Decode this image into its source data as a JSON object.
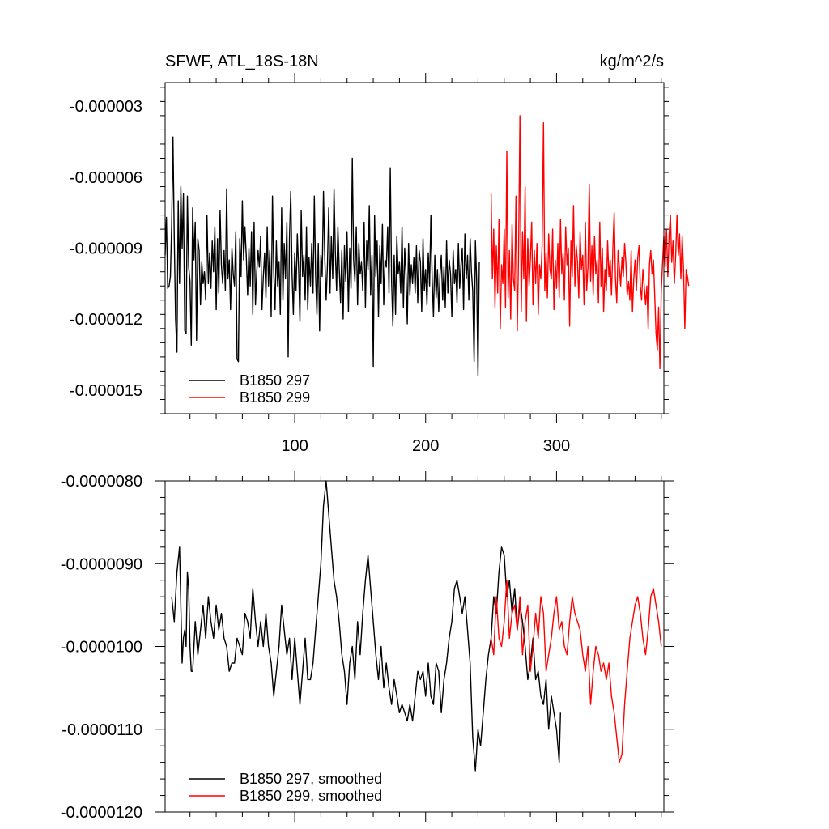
{
  "chart_data": [
    {
      "type": "line",
      "title": "SFWF, ATL_18S-18N",
      "units": "kg/m^2/s",
      "xlim": [
        1,
        382
      ],
      "ylim": [
        -1.6e-05,
        -2e-06
      ],
      "y_ticks": [
        -3e-06,
        -6e-06,
        -9e-06,
        -1.2e-05,
        -1.5e-05
      ],
      "y_tick_labels": [
        "-0.000003",
        "-0.000006",
        "-0.000009",
        "-0.000012",
        "-0.000015"
      ],
      "x_ticks": [
        100,
        200,
        300
      ],
      "x_tick_labels": [
        "100",
        "200",
        "300"
      ],
      "legend_position": "bottom-left",
      "series": [
        {
          "name": "B1850 297",
          "color": "#000000",
          "x_start": 1,
          "values": [
            -9.3e-06,
            -7.7e-06,
            -1.07e-05,
            -1.06e-05,
            -1.02e-05,
            -8e-06,
            -4.3e-06,
            -8.6e-06,
            -1.2e-05,
            -1.34e-05,
            -7e-06,
            -1.05e-05,
            -6.4e-06,
            -9e-06,
            -6.7e-06,
            -1.25e-05,
            -1.26e-05,
            -6.8e-06,
            -9.8e-06,
            -1.04e-05,
            -1.31e-05,
            -7.3e-06,
            -9.5e-06,
            -7.9e-06,
            -1.29e-05,
            -8.6e-06,
            -9.1e-06,
            -1.14e-05,
            -9.6e-06,
            -1.05e-05,
            -1e-05,
            -1.12e-05,
            -7.6e-06,
            -1.05e-05,
            -9.2e-06,
            -1.07e-05,
            -8.7e-06,
            -1e-05,
            -8.1e-06,
            -1.16e-05,
            -8.6e-06,
            -1.09e-05,
            -7.4e-06,
            -9.7e-06,
            -1.05e-05,
            -9.1e-06,
            -1.08e-05,
            -6.5e-06,
            -1.03e-05,
            -9.5e-06,
            -1.16e-05,
            -9e-06,
            -1.01e-05,
            -1.06e-05,
            -8.3e-06,
            -1.37e-05,
            -1.38e-05,
            -8.6e-06,
            -1.02e-05,
            -7e-06,
            -9.5e-06,
            -8.1e-06,
            -9.3e-06,
            -1.1e-05,
            -9e-06,
            -1.06e-05,
            -8.3e-06,
            -1.18e-05,
            -7.9e-06,
            -1.14e-05,
            -1e-05,
            -9.1e-06,
            -9.8e-06,
            -8.5e-06,
            -1.16e-05,
            -1.02e-05,
            -9.2e-06,
            -1.11e-05,
            -8.1e-06,
            -1.06e-05,
            -9.1e-06,
            -1.19e-05,
            -6.8e-06,
            -1e-05,
            -1.16e-05,
            -8.7e-06,
            -1.06e-05,
            -9.6e-06,
            -1.18e-05,
            -7.3e-06,
            -1.12e-05,
            -8.8e-06,
            -1.03e-05,
            -7.9e-06,
            -1.36e-05,
            -8.6e-06,
            -6.6e-06,
            -1.01e-05,
            -1.18e-05,
            -9.2e-06,
            -1.08e-05,
            -8.4e-06,
            -9.9e-06,
            -1.21e-05,
            -7.4e-06,
            -1.02e-05,
            -9.3e-06,
            -1.12e-05,
            -8.1e-06,
            -1.16e-05,
            -9.4e-06,
            -1.06e-05,
            -8.8e-06,
            -1.09e-05,
            -6.8e-06,
            -1.02e-05,
            -1.18e-05,
            -8.8e-06,
            -1.25e-05,
            -9.3e-06,
            -1.02e-05,
            -6.6e-06,
            -9.4e-06,
            -1.12e-05,
            -9.7e-06,
            -7.3e-06,
            -1.09e-05,
            -8.5e-06,
            -1.03e-05,
            -6.5e-06,
            -9.1e-06,
            -1.08e-05,
            -8.1e-06,
            -9.8e-06,
            -1.13e-05,
            -9.1e-06,
            -1.2e-05,
            -8.9e-06,
            -1.04e-05,
            -8.3e-06,
            -1.17e-05,
            -9e-06,
            -1.07e-05,
            -5.2e-06,
            -9.5e-06,
            -1.04e-05,
            -8.1e-06,
            -1.14e-05,
            -8.8e-06,
            -1.01e-05,
            -9.6e-06,
            -1.08e-05,
            -7.9e-06,
            -1.15e-05,
            -8.7e-06,
            -9.9e-06,
            -7.2e-06,
            -1.1e-05,
            -9.3e-06,
            -1.4e-05,
            -7.6e-06,
            -1.02e-05,
            -8.7e-06,
            -1.19e-05,
            -8.9e-06,
            -1.05e-05,
            -8e-06,
            -1.14e-05,
            -9.5e-06,
            -9.8e-06,
            -8.1e-06,
            -1.09e-05,
            -5.6e-06,
            -1.04e-05,
            -1.23e-05,
            -9.3e-06,
            -1.18e-05,
            -8.5e-06,
            -1.01e-05,
            -9.6e-06,
            -1.09e-05,
            -8.1e-06,
            -1.15e-05,
            -9e-06,
            -1.01e-05,
            -1.22e-05,
            -8.8e-06,
            -1.1e-05,
            -9.7e-06,
            -1.05e-05,
            -9.4e-06,
            -1.09e-05,
            -8.9e-06,
            -1.13e-05,
            -9.1e-06,
            -9.6e-06,
            -1.17e-05,
            -8.6e-06,
            -1.08e-05,
            -9.9e-06,
            -1.14e-05,
            -9.2e-06,
            -1.06e-05,
            -7.6e-06,
            -1.03e-05,
            -1.19e-05,
            -9.3e-06,
            -1.11e-05,
            -9.9e-06,
            -1.17e-05,
            -1.01e-05,
            -9.3e-06,
            -1.12e-05,
            -9.8e-06,
            -1.15e-05,
            -8.7e-06,
            -1.09e-05,
            -9.5e-06,
            -1.01e-05,
            -1.19e-05,
            -9.1e-06,
            -1.05e-05,
            -9.9e-06,
            -1.13e-05,
            -8.8e-06,
            -1.07e-05,
            -9.7e-06,
            -9e-06,
            -1.16e-05,
            -8.4e-06,
            -1.03e-05,
            -9.3e-06,
            -1.12e-05,
            -8.6e-06,
            -1e-05,
            -1.08e-05,
            -1.38e-05,
            -8.7e-06,
            -1.04e-05,
            -1.44e-05,
            -9.6e-06
          ],
          "legend_label": "B1850 297"
        },
        {
          "name": "B1850 299",
          "color": "#ff0000",
          "x_start": 250,
          "values": [
            -6.7e-06,
            -1.03e-05,
            -8.2e-06,
            -1.15e-05,
            -8.9e-06,
            -1.09e-05,
            -7.8e-06,
            -1.24e-05,
            -9.7e-06,
            -1.05e-05,
            -8.2e-06,
            -1.15e-05,
            -4.9e-06,
            -1.11e-05,
            -9.1e-06,
            -1.2e-05,
            -8e-06,
            -1.03e-05,
            -1.08e-05,
            -6.8e-06,
            -1.25e-05,
            -9.3e-06,
            -3.4e-06,
            -1.17e-05,
            -8.3e-06,
            -1.03e-05,
            -6.4e-06,
            -1.21e-05,
            -8.6e-06,
            -1.06e-05,
            -9.5e-06,
            -7.9e-06,
            -1.14e-05,
            -9.1e-06,
            -1.05e-05,
            -8.8e-06,
            -1.18e-05,
            -9.7e-06,
            -1.03e-05,
            -8.9e-06,
            -3.7e-06,
            -1.08e-05,
            -9.2e-06,
            -1.11e-05,
            -8.4e-06,
            -9.9e-06,
            -1.03e-05,
            -8.2e-06,
            -1.16e-05,
            -9.5e-06,
            -1.07e-05,
            -8.8e-06,
            -1.11e-05,
            -7.8e-06,
            -1.01e-05,
            -9.2e-06,
            -1.12e-05,
            -8.1e-06,
            -9.7e-06,
            -9e-06,
            -1.23e-05,
            -8.7e-06,
            -1.02e-05,
            -7.2e-06,
            -1.06e-05,
            -8.9e-06,
            -9.6e-06,
            -1.11e-05,
            -8.3e-06,
            -9.9e-06,
            -9.3e-06,
            -1.14e-05,
            -7.9e-06,
            -1.08e-05,
            -9.8e-06,
            -6.3e-06,
            -1.04e-05,
            -8.9e-06,
            -1.1e-05,
            -8.5e-06,
            -1.01e-05,
            -9.5e-06,
            -1.13e-05,
            -7.9e-06,
            -1.06e-05,
            -9e-06,
            -1.17e-05,
            -9.9e-06,
            -1.08e-05,
            -8.7e-06,
            -1.02e-05,
            -9.5e-06,
            -1.1e-05,
            -9.1e-06,
            -7.5e-06,
            -1.03e-05,
            -1.13e-05,
            -9.1e-06,
            -9.8e-06,
            -1.06e-05,
            -9.4e-06,
            -1.02e-05,
            -8.8e-06,
            -9.6e-06,
            -1.1e-05,
            -1.04e-05,
            -1.12e-05,
            -9.1e-06,
            -1.17e-05,
            -1.03e-05,
            -9.5e-06,
            -1.08e-05,
            -9.4e-06,
            -8.9e-06,
            -1.06e-05,
            -1.12e-05,
            -9.9e-06,
            -1.06e-05,
            -1.14e-05,
            -1.06e-05,
            -1.24e-05,
            -9.7e-06,
            -9.1e-06,
            -1.01e-05,
            -9.5e-06,
            -1.1e-05,
            -1.26e-05,
            -1.33e-05,
            -1.15e-05,
            -1.41e-05,
            -1.08e-05,
            -9.6e-06,
            -8.5e-06,
            -9.8e-06,
            -8.2e-06,
            -1.02e-05,
            -8.4e-06,
            -7.6e-06,
            -9.6e-06,
            -8.7e-06,
            -1.05e-05,
            -9.3e-06,
            -7.6e-06,
            -9.3e-06,
            -8.4e-06,
            -1.03e-05,
            -8.5e-06,
            -9.9e-06,
            -1.24e-05,
            -9.9e-06,
            -1.02e-05,
            -1.06e-05
          ],
          "legend_label": "B1850 299"
        }
      ]
    },
    {
      "type": "line",
      "title": "",
      "units": "",
      "xlim": [
        1,
        382
      ],
      "ylim": [
        -1.2e-05,
        -8e-06
      ],
      "y_ticks": [
        -8e-06,
        -9e-06,
        -1e-05,
        -1.1e-05,
        -1.2e-05
      ],
      "y_tick_labels": [
        "-0.0000080",
        "-0.0000090",
        "-0.0000100",
        "-0.0000110",
        "-0.0000120"
      ],
      "x_ticks": [
        100,
        200,
        300
      ],
      "x_tick_labels": [],
      "legend_position": "bottom-left",
      "series": [
        {
          "name": "B1850 297, smoothed",
          "color": "#000000",
          "x": [
            6,
            8,
            10,
            12,
            14,
            15,
            16,
            17,
            18,
            19,
            20,
            21,
            22,
            24,
            26,
            28,
            30,
            32,
            34,
            36,
            38,
            40,
            42,
            44,
            46,
            48,
            50,
            52,
            54,
            56,
            58,
            60,
            62,
            64,
            66,
            68,
            70,
            72,
            74,
            76,
            78,
            80,
            82,
            84,
            86,
            88,
            90,
            92,
            94,
            96,
            98,
            100,
            102,
            104,
            106,
            108,
            110,
            112,
            114,
            116,
            118,
            120,
            122,
            124,
            126,
            128,
            130,
            132,
            134,
            136,
            138,
            140,
            142,
            144,
            146,
            148,
            150,
            152,
            154,
            156,
            158,
            160,
            162,
            164,
            166,
            168,
            170,
            172,
            174,
            176,
            178,
            180,
            182,
            184,
            186,
            188,
            190,
            192,
            194,
            196,
            198,
            200,
            202,
            204,
            206,
            208,
            210,
            212,
            214,
            216,
            218,
            220,
            222,
            224,
            226,
            228,
            230,
            232,
            234,
            236,
            238,
            240,
            242,
            244,
            246,
            248,
            250,
            252,
            254,
            256,
            258,
            260,
            262,
            264,
            266,
            268,
            270,
            272,
            274,
            276,
            278,
            280,
            282,
            284,
            286,
            288,
            290,
            292,
            294,
            296,
            298,
            300,
            302,
            303
          ],
          "values": [
            -9.4e-06,
            -9.7e-06,
            -9.1e-06,
            -8.8e-06,
            -1.02e-05,
            -9.9e-06,
            -9.8e-06,
            -1e-05,
            -9.1e-06,
            -9.3e-06,
            -1e-05,
            -1.03e-05,
            -1.03e-05,
            -9.7e-06,
            -1.01e-05,
            -9.8e-06,
            -9.5e-06,
            -9.9e-06,
            -9.4e-06,
            -9.7e-06,
            -9.9e-06,
            -9.5e-06,
            -9.8e-06,
            -9.6e-06,
            -9.9e-06,
            -1e-05,
            -1.03e-05,
            -1.02e-05,
            -1.02e-05,
            -9.9e-06,
            -1e-05,
            -1.01e-05,
            -9.6e-06,
            -9.7e-06,
            -9.9e-06,
            -9.3e-06,
            -9.7e-06,
            -1e-05,
            -9.7e-06,
            -1e-05,
            -9.6e-06,
            -1e-05,
            -1.02e-05,
            -1.06e-05,
            -1.03e-05,
            -1e-05,
            -9.5e-06,
            -9.8e-06,
            -1.01e-05,
            -9.9e-06,
            -1.04e-05,
            -9.9e-06,
            -1.03e-05,
            -1.07e-05,
            -1.03e-05,
            -9.9e-06,
            -1.04e-05,
            -1.04e-05,
            -1.02e-05,
            -9.8e-06,
            -9.4e-06,
            -9e-06,
            -8.3e-06,
            -8e-06,
            -8.4e-06,
            -8.8e-06,
            -9.2e-06,
            -9.4e-06,
            -9.7e-06,
            -1.01e-05,
            -1.03e-05,
            -1.07e-05,
            -1.02e-05,
            -1e-05,
            -1.04e-05,
            -9.7e-06,
            -1.01e-05,
            -9.6e-06,
            -9.2e-06,
            -8.9e-06,
            -9.3e-06,
            -9.7e-06,
            -1.01e-05,
            -1.04e-05,
            -1e-05,
            -1.05e-05,
            -1.02e-05,
            -1.05e-05,
            -1.07e-05,
            -1.04e-05,
            -1.06e-05,
            -1.08e-05,
            -1.07e-05,
            -1.08e-05,
            -1.09e-05,
            -1.07e-05,
            -1.09e-05,
            -1.06e-05,
            -1.03e-05,
            -1.04e-05,
            -1.03e-05,
            -1.06e-05,
            -1.02e-05,
            -1.06e-05,
            -1.07e-05,
            -1.02e-05,
            -1.03e-05,
            -1.08e-05,
            -1.04e-05,
            -1.02e-05,
            -9.9e-06,
            -9.7e-06,
            -9.3e-06,
            -9.2e-06,
            -9.4e-06,
            -9.6e-06,
            -9.4e-06,
            -9.8e-06,
            -1.02e-05,
            -1.11e-05,
            -1.15e-05,
            -1.1e-05,
            -1.12e-05,
            -1.08e-05,
            -1.04e-05,
            -1.01e-05,
            -9.9e-06,
            -9.4e-06,
            -9.6e-06,
            -9.1e-06,
            -8.8e-06,
            -8.9e-06,
            -9.4e-06,
            -9.2e-06,
            -9.6e-06,
            -9.3e-06,
            -9.8e-06,
            -9.5e-06,
            -9.7e-06,
            -1e-05,
            -1.04e-05,
            -1.02e-05,
            -9.9e-06,
            -1.04e-05,
            -1.03e-05,
            -1.06e-05,
            -1.07e-05,
            -1.04e-05,
            -1.1e-05,
            -1.06e-05,
            -1.08e-05,
            -1.1e-05,
            -1.14e-05,
            -1.08e-05
          ],
          "legend_label": "B1850 297, smoothed"
        },
        {
          "name": "B1850 299, smoothed",
          "color": "#ff0000",
          "x": [
            250,
            252,
            254,
            256,
            258,
            260,
            262,
            264,
            266,
            268,
            270,
            272,
            274,
            276,
            278,
            280,
            282,
            284,
            286,
            288,
            290,
            292,
            294,
            296,
            298,
            300,
            302,
            304,
            306,
            308,
            310,
            312,
            314,
            316,
            318,
            320,
            322,
            324,
            326,
            328,
            330,
            332,
            334,
            336,
            338,
            340,
            342,
            344,
            346,
            348,
            350,
            352,
            354,
            356,
            358,
            360,
            362,
            364,
            366,
            368,
            370,
            372,
            374,
            376,
            378,
            380
          ],
          "values": [
            -9.9e-06,
            -1.01e-05,
            -9.4e-06,
            -9.9e-06,
            -1e-05,
            -9.7e-06,
            -9.2e-06,
            -9.9e-06,
            -9.6e-06,
            -9.5e-06,
            -9.8e-06,
            -9.4e-06,
            -1.01e-05,
            -9.7e-06,
            -9.5e-06,
            -1.03e-05,
            -1e-05,
            -9.6e-06,
            -9.9e-06,
            -9.4e-06,
            -9.6e-06,
            -1.03e-05,
            -1.01e-05,
            -9.9e-06,
            -9.6e-06,
            -9.4e-06,
            -9.8e-06,
            -9.7e-06,
            -1e-05,
            -1.01e-05,
            -9.7e-06,
            -9.4e-06,
            -9.6e-06,
            -9.7e-06,
            -9.8e-06,
            -1.01e-05,
            -1.03e-05,
            -1e-05,
            -1.07e-05,
            -1.03e-05,
            -1e-05,
            -1.01e-05,
            -1.03e-05,
            -1.02e-05,
            -1.04e-05,
            -1.02e-05,
            -1.06e-05,
            -1.08e-05,
            -1.11e-05,
            -1.14e-05,
            -1.13e-05,
            -1.07e-05,
            -1.03e-05,
            -9.9e-06,
            -9.7e-06,
            -9.5e-06,
            -9.4e-06,
            -9.6e-06,
            -9.9e-06,
            -1.01e-05,
            -9.8e-06,
            -9.4e-06,
            -9.3e-06,
            -9.5e-06,
            -9.7e-06,
            -1e-05
          ],
          "legend_label": "B1850 299, smoothed"
        }
      ]
    }
  ]
}
